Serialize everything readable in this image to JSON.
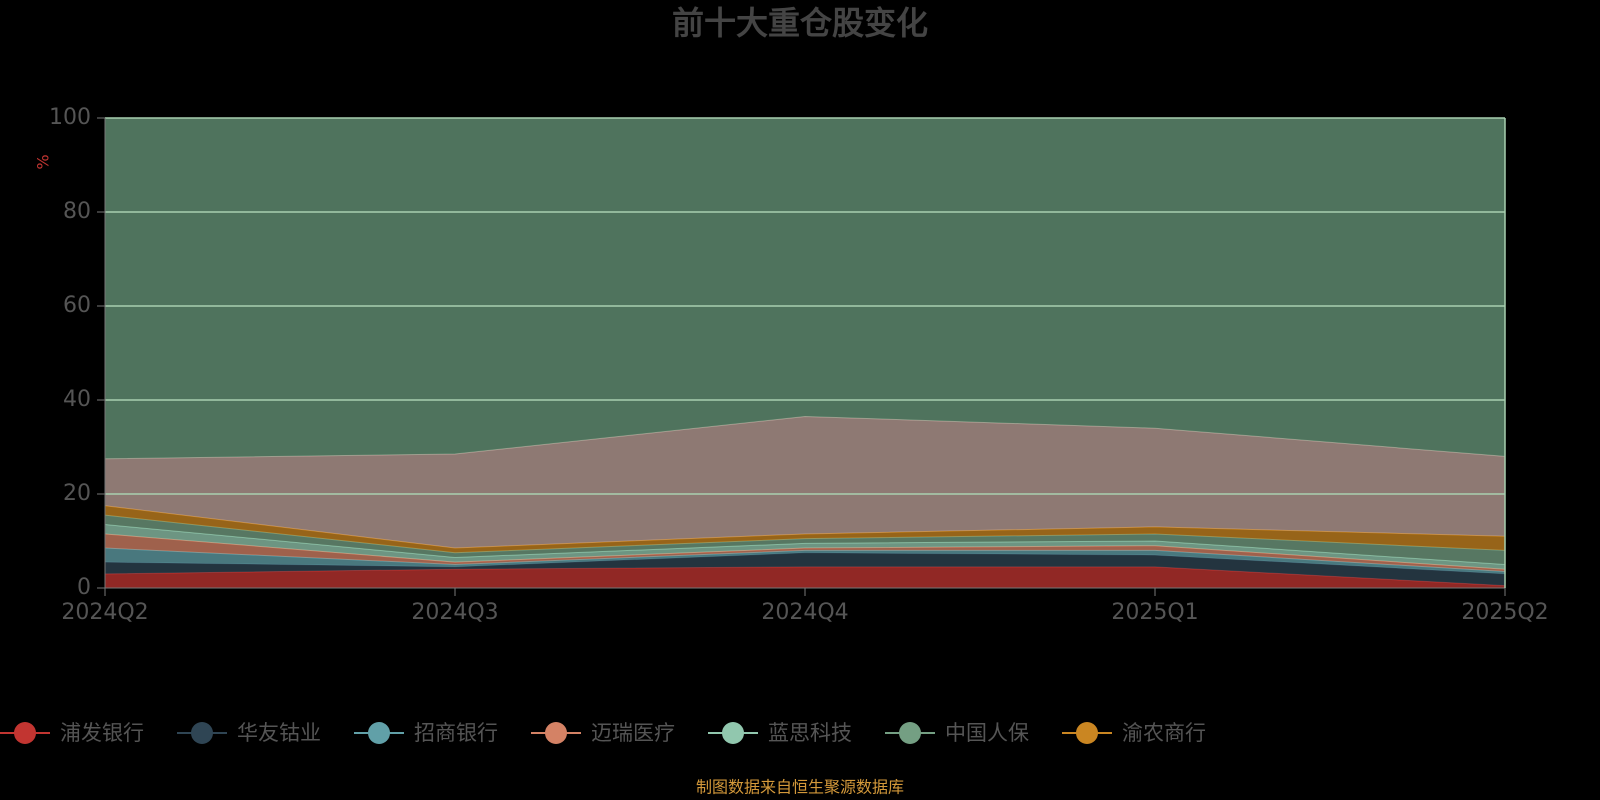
{
  "chart_data": {
    "type": "stacked-area",
    "title": "前十大重仓股变化",
    "y_label": "%",
    "categories": [
      "2024Q2",
      "2024Q3",
      "2024Q4",
      "2025Q1",
      "2025Q2"
    ],
    "ylim": [
      0,
      100
    ],
    "yticks": [
      0,
      20,
      40,
      60,
      80,
      100
    ],
    "grid": true,
    "series": [
      {
        "name": "浦发银行",
        "color": "#c23531",
        "values": [
          3,
          4,
          4.5,
          4.5,
          0.5
        ]
      },
      {
        "name": "华友钴业",
        "color": "#2f4554",
        "values": [
          2.5,
          0.5,
          3,
          2.5,
          2.5
        ]
      },
      {
        "name": "招商银行",
        "color": "#61a0a8",
        "values": [
          3,
          0.5,
          0.5,
          1,
          0.5
        ]
      },
      {
        "name": "迈瑞医疗",
        "color": "#d48265",
        "values": [
          3,
          0.5,
          0.5,
          1,
          0.5
        ]
      },
      {
        "name": "蓝思科技",
        "color": "#91c7ae",
        "values": [
          2,
          1,
          1,
          1,
          1
        ]
      },
      {
        "name": "中国人保",
        "color": "#749f83",
        "values": [
          2,
          1,
          1,
          1.5,
          3
        ]
      },
      {
        "name": "渝农商行",
        "color": "#ca8622",
        "values": [
          2,
          1,
          1,
          1.5,
          3
        ]
      },
      {
        "color": "#bda29a",
        "values": [
          10,
          20,
          25,
          21,
          17
        ]
      },
      {
        "color": "#6a9a7c",
        "values": [
          72.5,
          71.5,
          63.5,
          66,
          72
        ]
      }
    ],
    "source": "制图数据来自恒生聚源数据库"
  }
}
